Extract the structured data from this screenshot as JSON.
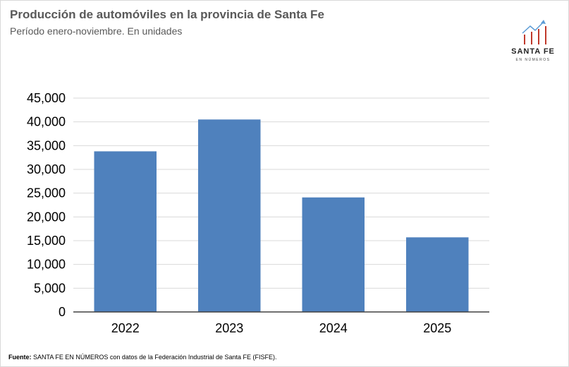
{
  "header": {
    "title": "Producción de automóviles en la provincia de Santa Fe",
    "subtitle": "Período enero-noviembre.  En unidades"
  },
  "logo": {
    "word": "SANTA FE",
    "sub": "EN NÚMEROS",
    "colors": {
      "bars": "#c0392b",
      "arrow": "#5b9bd5"
    }
  },
  "chart_data": {
    "type": "bar",
    "categories": [
      "2022",
      "2023",
      "2024",
      "2025"
    ],
    "values": [
      33800,
      40500,
      24100,
      15700
    ],
    "ylim": [
      0,
      45000
    ],
    "yticks": [
      0,
      5000,
      10000,
      15000,
      20000,
      25000,
      30000,
      35000,
      40000,
      45000
    ],
    "ytick_labels": [
      "0",
      "5,000",
      "10,000",
      "15,000",
      "20,000",
      "25,000",
      "30,000",
      "35,000",
      "40,000",
      "45,000"
    ],
    "grid": true,
    "bar_color": "#4f81bd",
    "grid_color": "#d9d9d9",
    "axis_color": "#404040"
  },
  "footer": {
    "source_label": "Fuente:",
    "source_text": " SANTA FE EN NÚMEROS con datos de la Federación Industrial de Santa FE (FISFE)."
  }
}
